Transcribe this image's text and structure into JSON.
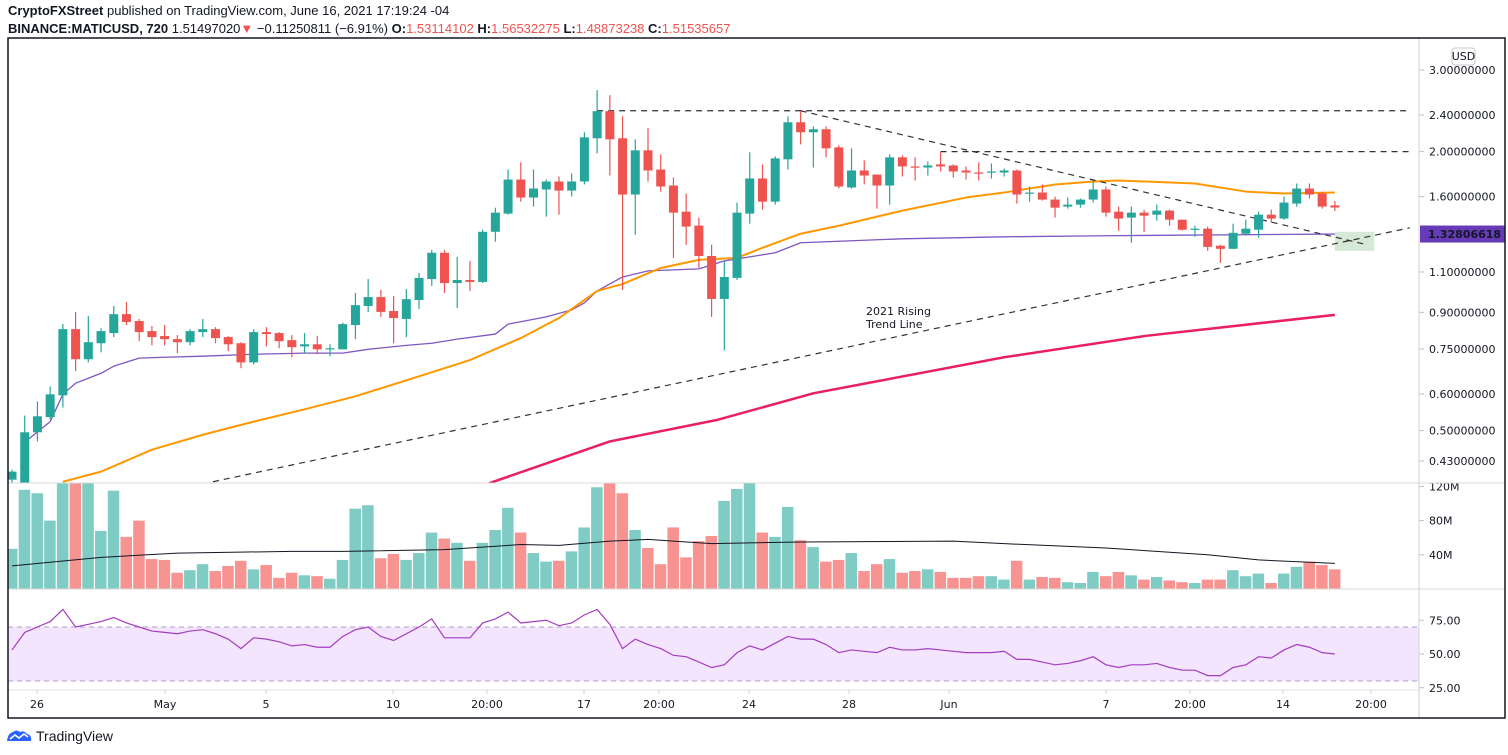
{
  "header": {
    "publisher": "CryptoFXStreet",
    "published_text": "published on TradingView.com, June 16, 2021 17:19:24 -04",
    "symbol": "BINANCE:MATICUSD, 720",
    "last_price": "1.51497020",
    "change": "−0.11250811 (−6.91%)",
    "o_label": "O:",
    "o_value": "1.53114102",
    "h_label": "H:",
    "h_value": "1.56532275",
    "l_label": "L:",
    "l_value": "1.48873238",
    "c_label": "C:",
    "c_value": "1.51535657"
  },
  "price_axis": {
    "currency": "USD",
    "ticks": [
      "3.00000000",
      "2.40000000",
      "2.00000000",
      "1.60000000",
      "1.10000000",
      "0.90000000",
      "0.75000000",
      "0.60000000",
      "0.50000000",
      "0.43000000"
    ],
    "tick_values": [
      3.0,
      2.4,
      2.0,
      1.6,
      1.1,
      0.9,
      0.75,
      0.6,
      0.5,
      0.43
    ],
    "current_label": "1.32806618",
    "current_value": 1.32806618
  },
  "volume_axis": {
    "ticks": [
      "120M",
      "80M",
      "40M"
    ],
    "tick_values": [
      120,
      80,
      40
    ]
  },
  "rsi_axis": {
    "ticks": [
      "75.00",
      "50.00",
      "25.00"
    ],
    "tick_values": [
      75,
      50,
      25
    ]
  },
  "time_axis": {
    "labels": [
      "26",
      "May",
      "5",
      "10",
      "20:00",
      "17",
      "20:00",
      "24",
      "28",
      "Jun",
      "7",
      "20:00",
      "14",
      "20:00"
    ]
  },
  "annotation": {
    "line1": "2021 Rising",
    "line2": "Trend Line"
  },
  "footer": {
    "brand": "TradingView"
  },
  "colors": {
    "up": "#26a69a",
    "down": "#ef5350",
    "up_vol": "#7fccc4",
    "down_vol": "#f79391",
    "ma_short": "#7e57c2",
    "ma_mid": "#ff9800",
    "ma_long": "#e91e63",
    "rsi": "#a43cc0",
    "rsi_band": "#f3e5fd",
    "label_bg": "#673ab7"
  },
  "chart_data": {
    "type": "candlestick",
    "title": "BINANCE:MATICUSD, 720",
    "y_scale": "log",
    "ylim": [
      0.43,
      3.0
    ],
    "candles_ohlc": [
      [
        0.392,
        0.412,
        0.384,
        0.408
      ],
      [
        0.384,
        0.539,
        0.38,
        0.496
      ],
      [
        0.496,
        0.578,
        0.474,
        0.537
      ],
      [
        0.535,
        0.623,
        0.528,
        0.599
      ],
      [
        0.596,
        0.849,
        0.561,
        0.828
      ],
      [
        0.828,
        0.902,
        0.672,
        0.713
      ],
      [
        0.713,
        0.884,
        0.702,
        0.776
      ],
      [
        0.772,
        0.832,
        0.738,
        0.82
      ],
      [
        0.812,
        0.929,
        0.796,
        0.892
      ],
      [
        0.892,
        0.947,
        0.845,
        0.858
      ],
      [
        0.862,
        0.871,
        0.78,
        0.816
      ],
      [
        0.82,
        0.841,
        0.764,
        0.796
      ],
      [
        0.8,
        0.845,
        0.764,
        0.788
      ],
      [
        0.788,
        0.804,
        0.735,
        0.776
      ],
      [
        0.776,
        0.828,
        0.764,
        0.82
      ],
      [
        0.816,
        0.871,
        0.796,
        0.828
      ],
      [
        0.828,
        0.836,
        0.772,
        0.792
      ],
      [
        0.796,
        0.8,
        0.742,
        0.768
      ],
      [
        0.772,
        0.776,
        0.682,
        0.702
      ],
      [
        0.702,
        0.828,
        0.695,
        0.816
      ],
      [
        0.816,
        0.836,
        0.76,
        0.808
      ],
      [
        0.812,
        0.816,
        0.753,
        0.78
      ],
      [
        0.784,
        0.804,
        0.72,
        0.757
      ],
      [
        0.76,
        0.812,
        0.735,
        0.768
      ],
      [
        0.768,
        0.8,
        0.731,
        0.749
      ],
      [
        0.749,
        0.768,
        0.724,
        0.753
      ],
      [
        0.749,
        0.854,
        0.749,
        0.849
      ],
      [
        0.845,
        0.991,
        0.788,
        0.933
      ],
      [
        0.929,
        1.062,
        0.902,
        0.971
      ],
      [
        0.971,
        1.006,
        0.88,
        0.902
      ],
      [
        0.906,
        0.976,
        0.772,
        0.875
      ],
      [
        0.871,
        1.011,
        0.796,
        0.961
      ],
      [
        0.957,
        1.095,
        0.915,
        1.068
      ],
      [
        1.062,
        1.228,
        1.026,
        1.21
      ],
      [
        1.21,
        1.228,
        0.991,
        1.041
      ],
      [
        1.041,
        1.185,
        0.92,
        1.057
      ],
      [
        1.057,
        1.162,
        1.001,
        1.047
      ],
      [
        1.047,
        1.357,
        1.041,
        1.343
      ],
      [
        1.343,
        1.514,
        1.278,
        1.477
      ],
      [
        1.47,
        1.83,
        1.462,
        1.741
      ],
      [
        1.741,
        1.896,
        1.56,
        1.592
      ],
      [
        1.592,
        1.83,
        1.522,
        1.665
      ],
      [
        1.657,
        1.741,
        1.448,
        1.724
      ],
      [
        1.724,
        1.767,
        1.462,
        1.648
      ],
      [
        1.648,
        1.794,
        1.6,
        1.724
      ],
      [
        1.724,
        2.202,
        1.699,
        2.147
      ],
      [
        2.137,
        2.715,
        1.983,
        2.445
      ],
      [
        2.445,
        2.648,
        1.776,
        2.126
      ],
      [
        2.137,
        2.384,
        1.006,
        1.616
      ],
      [
        1.616,
        2.126,
        1.323,
        2.013
      ],
      [
        2.013,
        2.246,
        1.724,
        1.821
      ],
      [
        1.83,
        1.973,
        1.64,
        1.682
      ],
      [
        1.69,
        1.758,
        1.18,
        1.477
      ],
      [
        1.484,
        1.624,
        1.259,
        1.378
      ],
      [
        1.385,
        1.441,
        1.122,
        1.191
      ],
      [
        1.191,
        1.259,
        0.88,
        0.962
      ],
      [
        0.962,
        1.162,
        0.745,
        1.073
      ],
      [
        1.068,
        1.553,
        1.057,
        1.477
      ],
      [
        1.47,
        1.993,
        1.398,
        1.75
      ],
      [
        1.75,
        1.877,
        1.499,
        1.56
      ],
      [
        1.56,
        1.954,
        1.537,
        1.934
      ],
      [
        1.925,
        2.384,
        1.83,
        2.314
      ],
      [
        2.314,
        2.445,
        2.073,
        2.202
      ],
      [
        2.202,
        2.268,
        1.848,
        2.235
      ],
      [
        2.235,
        2.268,
        1.944,
        2.033
      ],
      [
        2.043,
        2.063,
        1.665,
        1.682
      ],
      [
        1.674,
        2.033,
        1.665,
        1.821
      ],
      [
        1.821,
        1.915,
        1.699,
        1.776
      ],
      [
        1.785,
        1.785,
        1.507,
        1.69
      ],
      [
        1.69,
        1.973,
        1.537,
        1.944
      ],
      [
        1.944,
        1.963,
        1.767,
        1.858
      ],
      [
        1.858,
        1.944,
        1.733,
        1.848
      ],
      [
        1.848,
        1.905,
        1.776,
        1.867
      ],
      [
        1.877,
        1.993,
        1.812,
        1.858
      ],
      [
        1.867,
        1.877,
        1.758,
        1.812
      ],
      [
        1.821,
        1.858,
        1.741,
        1.803
      ],
      [
        1.803,
        1.896,
        1.733,
        1.794
      ],
      [
        1.803,
        1.886,
        1.75,
        1.812
      ],
      [
        1.803,
        1.839,
        1.767,
        1.821
      ],
      [
        1.821,
        1.83,
        1.545,
        1.616
      ],
      [
        1.624,
        1.682,
        1.56,
        1.632
      ],
      [
        1.632,
        1.699,
        1.568,
        1.576
      ],
      [
        1.576,
        1.6,
        1.441,
        1.514
      ],
      [
        1.522,
        1.592,
        1.507,
        1.537
      ],
      [
        1.537,
        1.584,
        1.514,
        1.576
      ],
      [
        1.576,
        1.733,
        1.553,
        1.657
      ],
      [
        1.657,
        1.682,
        1.448,
        1.477
      ],
      [
        1.484,
        1.522,
        1.35,
        1.434
      ],
      [
        1.441,
        1.522,
        1.272,
        1.477
      ],
      [
        1.477,
        1.499,
        1.343,
        1.455
      ],
      [
        1.462,
        1.537,
        1.419,
        1.492
      ],
      [
        1.492,
        1.499,
        1.384,
        1.426
      ],
      [
        1.426,
        1.426,
        1.35,
        1.357
      ],
      [
        1.357,
        1.384,
        1.31,
        1.364
      ],
      [
        1.364,
        1.378,
        1.222,
        1.246
      ],
      [
        1.253,
        1.259,
        1.151,
        1.234
      ],
      [
        1.234,
        1.398,
        1.234,
        1.336
      ],
      [
        1.33,
        1.426,
        1.317,
        1.364
      ],
      [
        1.357,
        1.484,
        1.304,
        1.462
      ],
      [
        1.462,
        1.499,
        1.405,
        1.434
      ],
      [
        1.434,
        1.6,
        1.426,
        1.553
      ],
      [
        1.545,
        1.707,
        1.522,
        1.665
      ],
      [
        1.665,
        1.707,
        1.584,
        1.616
      ],
      [
        1.624,
        1.64,
        1.507,
        1.522
      ],
      [
        1.531,
        1.565,
        1.489,
        1.515
      ]
    ],
    "moving_averages": [
      {
        "name": "MA short",
        "color_key": "ma_short",
        "points": [
          [
            2,
            0.472
          ],
          [
            4,
            0.523
          ],
          [
            5,
            0.599
          ],
          [
            6,
            0.633
          ],
          [
            8,
            0.665
          ],
          [
            9,
            0.689
          ],
          [
            11,
            0.717
          ],
          [
            13,
            0.72
          ],
          [
            16,
            0.724
          ],
          [
            20,
            0.731
          ],
          [
            24,
            0.735
          ],
          [
            27,
            0.735
          ],
          [
            29,
            0.749
          ],
          [
            32,
            0.764
          ],
          [
            34,
            0.772
          ],
          [
            36,
            0.788
          ],
          [
            39,
            0.808
          ],
          [
            40,
            0.849
          ],
          [
            43,
            0.88
          ],
          [
            45,
            0.911
          ],
          [
            46,
            0.943
          ],
          [
            47,
            1.001
          ],
          [
            49,
            1.073
          ],
          [
            51,
            1.106
          ],
          [
            55,
            1.117
          ],
          [
            57,
            1.162
          ],
          [
            61,
            1.21
          ],
          [
            63,
            1.272
          ],
          [
            71,
            1.297
          ],
          [
            79,
            1.31
          ],
          [
            87,
            1.317
          ],
          [
            105,
            1.328
          ]
        ]
      },
      {
        "name": "MA 50",
        "color_key": "ma_mid",
        "points": [
          [
            5,
            0.388
          ],
          [
            8,
            0.408
          ],
          [
            12,
            0.455
          ],
          [
            16,
            0.49
          ],
          [
            20,
            0.523
          ],
          [
            24,
            0.556
          ],
          [
            28,
            0.593
          ],
          [
            33,
            0.655
          ],
          [
            37,
            0.71
          ],
          [
            41,
            0.792
          ],
          [
            44,
            0.875
          ],
          [
            47,
            1.001
          ],
          [
            49,
            1.036
          ],
          [
            52,
            1.122
          ],
          [
            55,
            1.168
          ],
          [
            58,
            1.18
          ],
          [
            60,
            1.24
          ],
          [
            63,
            1.33
          ],
          [
            66,
            1.384
          ],
          [
            71,
            1.492
          ],
          [
            76,
            1.592
          ],
          [
            79,
            1.632
          ],
          [
            83,
            1.699
          ],
          [
            86,
            1.724
          ],
          [
            88,
            1.733
          ],
          [
            94,
            1.707
          ],
          [
            98,
            1.64
          ],
          [
            101,
            1.624
          ],
          [
            105,
            1.632
          ]
        ]
      },
      {
        "name": "MA 200",
        "color_key": "ma_long",
        "points": [
          [
            38.5,
            0.385
          ],
          [
            48,
            0.474
          ],
          [
            56.5,
            0.528
          ],
          [
            64,
            0.602
          ],
          [
            79,
            0.72
          ],
          [
            90,
            0.8
          ],
          [
            105,
            0.889
          ]
        ]
      }
    ],
    "trend_lines": [
      {
        "name": "resistance-2.45",
        "style": "dashed",
        "from": [
          47,
          2.45
        ],
        "to": [
          111,
          2.45
        ]
      },
      {
        "name": "resistance-2.00",
        "style": "dashed",
        "from": [
          74,
          2.0
        ],
        "to": [
          111,
          2.0
        ]
      },
      {
        "name": "descending-trend-line",
        "style": "dashed",
        "from": [
          63,
          2.45
        ],
        "to": [
          107.5,
          1.26
        ]
      },
      {
        "name": "2021-rising-trend-line",
        "style": "dashed",
        "from": [
          16.8,
          0.388
        ],
        "to": [
          110.9,
          1.37
        ]
      }
    ],
    "highlight_zone": {
      "idx": [
        105,
        108.1
      ],
      "price": [
        1.222,
        1.343
      ]
    },
    "volume_millions": [
      47,
      116,
      112,
      80,
      130,
      130,
      128,
      68,
      115,
      61,
      80,
      35,
      34,
      19,
      22,
      29,
      21,
      27,
      33,
      23,
      28,
      13,
      19,
      16,
      15,
      12,
      34,
      94,
      98,
      36,
      41,
      34,
      42,
      66,
      59,
      54,
      33,
      54,
      69,
      95,
      66,
      42,
      32,
      33,
      44,
      72,
      119,
      128,
      112,
      69,
      48,
      29,
      72,
      37,
      56,
      62,
      103,
      117,
      124,
      66,
      61,
      96,
      57,
      49,
      32,
      34,
      42,
      21,
      29,
      35,
      19,
      21,
      23,
      20,
      13,
      13,
      15,
      15,
      11,
      33,
      11,
      14,
      13,
      8,
      7,
      20,
      15,
      20,
      16,
      11,
      14,
      10,
      8,
      7,
      11,
      11,
      22,
      15,
      18,
      7,
      18,
      26,
      32,
      28,
      23
    ],
    "volume_ma_millions": [
      [
        1,
        27
      ],
      [
        8,
        37
      ],
      [
        14,
        42
      ],
      [
        23,
        44
      ],
      [
        27,
        44
      ],
      [
        35,
        46
      ],
      [
        41,
        52
      ],
      [
        44,
        51
      ],
      [
        48,
        56
      ],
      [
        51,
        58
      ],
      [
        53,
        56
      ],
      [
        56,
        53
      ],
      [
        59,
        54
      ],
      [
        63,
        55
      ],
      [
        75,
        56
      ],
      [
        79,
        53
      ],
      [
        87,
        48
      ],
      [
        95,
        40
      ],
      [
        99,
        34
      ],
      [
        105,
        30
      ]
    ],
    "rsi": [
      53,
      66,
      70,
      74,
      83,
      70,
      72,
      74,
      77,
      73,
      70,
      67,
      66,
      65,
      67,
      68,
      65,
      61,
      54,
      62,
      61,
      59,
      56,
      57,
      55,
      55,
      63,
      68,
      70,
      63,
      60,
      65,
      70,
      76,
      62,
      62,
      62,
      73,
      76,
      81,
      73,
      74,
      75,
      71,
      73,
      79,
      83,
      72,
      54,
      61,
      57,
      54,
      49,
      48,
      44,
      40,
      42,
      51,
      56,
      53,
      58,
      63,
      61,
      61,
      57,
      51,
      53,
      52,
      51,
      55,
      53,
      53,
      54,
      53,
      52,
      51,
      51,
      51,
      52,
      46,
      46,
      44,
      42,
      43,
      45,
      48,
      42,
      40,
      42,
      42,
      43,
      40,
      38,
      38,
      34,
      34,
      40,
      42,
      48,
      47,
      53,
      57,
      55,
      51,
      50
    ],
    "rsi_bands": [
      30,
      70
    ]
  }
}
